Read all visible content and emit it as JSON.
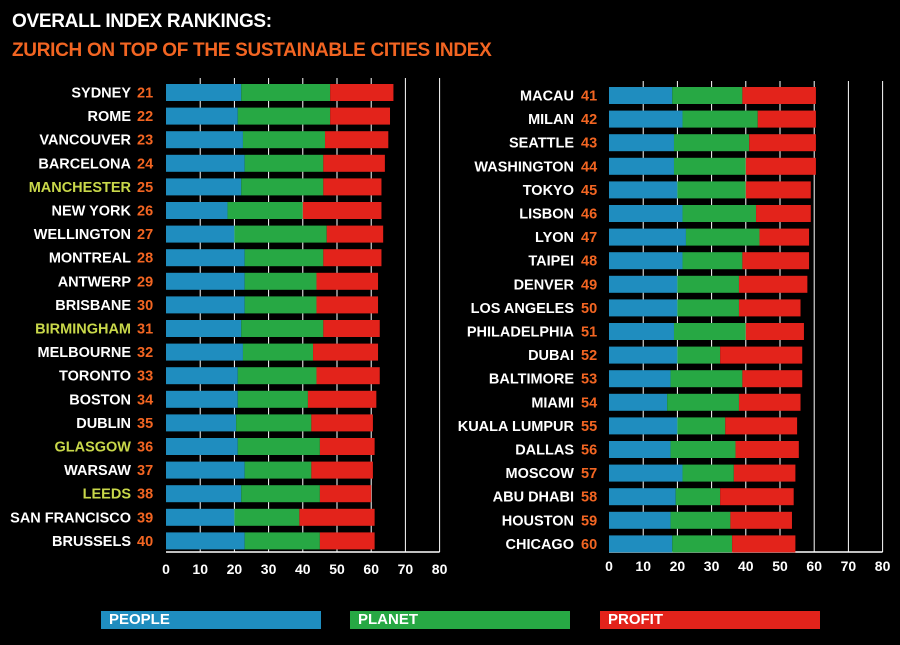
{
  "title": "OVERALL INDEX RANKINGS:",
  "subtitle": "ZURICH ON TOP OF THE SUSTAINABLE CITIES INDEX",
  "colors": {
    "people": "#1f8dbf",
    "planet": "#27a844",
    "profit": "#e3231b",
    "rank": "#f26522",
    "uk_city": "#c9d84a",
    "city": "#ffffff"
  },
  "legend": [
    {
      "label": "PEOPLE",
      "color": "#1f8dbf"
    },
    {
      "label": "PLANET",
      "color": "#27a844"
    },
    {
      "label": "PROFIT",
      "color": "#e3231b"
    }
  ],
  "chart_data": [
    {
      "type": "bar",
      "stacked": true,
      "orientation": "horizontal",
      "xlim": [
        0,
        80
      ],
      "xticks": [
        0,
        10,
        20,
        30,
        40,
        50,
        60,
        70,
        80
      ],
      "categories": [
        "SYDNEY",
        "ROME",
        "VANCOUVER",
        "BARCELONA",
        "MANCHESTER",
        "NEW YORK",
        "WELLINGTON",
        "MONTREAL",
        "ANTWERP",
        "BRISBANE",
        "BIRMINGHAM",
        "MELBOURNE",
        "TORONTO",
        "BOSTON",
        "DUBLIN",
        "GLASGOW",
        "WARSAW",
        "LEEDS",
        "SAN FRANCISCO",
        "BRUSSELS"
      ],
      "ranks": [
        21,
        22,
        23,
        24,
        25,
        26,
        27,
        28,
        29,
        30,
        31,
        32,
        33,
        34,
        35,
        36,
        37,
        38,
        39,
        40
      ],
      "highlight": [
        false,
        false,
        false,
        false,
        true,
        false,
        false,
        false,
        false,
        false,
        true,
        false,
        false,
        false,
        false,
        true,
        false,
        true,
        false,
        false
      ],
      "series": [
        {
          "name": "PEOPLE",
          "values": [
            22,
            21,
            22.5,
            23,
            22,
            18,
            20,
            23,
            23,
            23,
            22,
            22.5,
            21,
            21,
            20.5,
            21,
            23,
            22,
            20,
            23
          ]
        },
        {
          "name": "PLANET",
          "values": [
            26,
            27,
            24,
            23,
            24,
            22,
            27,
            23,
            21,
            21,
            24,
            20.5,
            23,
            20.5,
            22,
            24,
            19.5,
            23,
            19,
            22
          ]
        },
        {
          "name": "PROFIT",
          "values": [
            18.5,
            17.5,
            18.5,
            18,
            17,
            23,
            16.5,
            17,
            18,
            18,
            16.5,
            19,
            18.5,
            20,
            18,
            16,
            18,
            15,
            22,
            16
          ]
        }
      ]
    },
    {
      "type": "bar",
      "stacked": true,
      "orientation": "horizontal",
      "xlim": [
        0,
        80
      ],
      "xticks": [
        0,
        10,
        20,
        30,
        40,
        50,
        60,
        70,
        80
      ],
      "categories": [
        "MACAU",
        "MILAN",
        "SEATTLE",
        "WASHINGTON",
        "TOKYO",
        "LISBON",
        "LYON",
        "TAIPEI",
        "DENVER",
        "LOS ANGELES",
        "PHILADELPHIA",
        "DUBAI",
        "BALTIMORE",
        "MIAMI",
        "KUALA LUMPUR",
        "DALLAS",
        "MOSCOW",
        "ABU DHABI",
        "HOUSTON",
        "CHICAGO"
      ],
      "ranks": [
        41,
        42,
        43,
        44,
        45,
        46,
        47,
        48,
        49,
        50,
        51,
        52,
        53,
        54,
        55,
        56,
        57,
        58,
        59,
        60
      ],
      "highlight": [
        false,
        false,
        false,
        false,
        false,
        false,
        false,
        false,
        false,
        false,
        false,
        false,
        false,
        false,
        false,
        false,
        false,
        false,
        false,
        false
      ],
      "series": [
        {
          "name": "PEOPLE",
          "values": [
            18.5,
            21.5,
            19,
            19,
            20,
            21.5,
            22.5,
            21.5,
            20,
            20,
            19,
            20,
            18,
            17,
            20,
            18,
            21.5,
            19.5,
            18,
            18.5
          ]
        },
        {
          "name": "PLANET",
          "values": [
            20.5,
            22,
            22,
            21,
            20,
            21.5,
            21.5,
            17.5,
            18,
            18,
            21,
            12.5,
            21,
            21,
            14,
            19,
            15,
            13,
            17.5,
            17.5
          ]
        },
        {
          "name": "PROFIT",
          "values": [
            21.5,
            17,
            19.5,
            20.5,
            19,
            16,
            14.5,
            19.5,
            20,
            18,
            17,
            24,
            17.5,
            18,
            21,
            18.5,
            18,
            21.5,
            18,
            18.5
          ]
        }
      ]
    }
  ]
}
